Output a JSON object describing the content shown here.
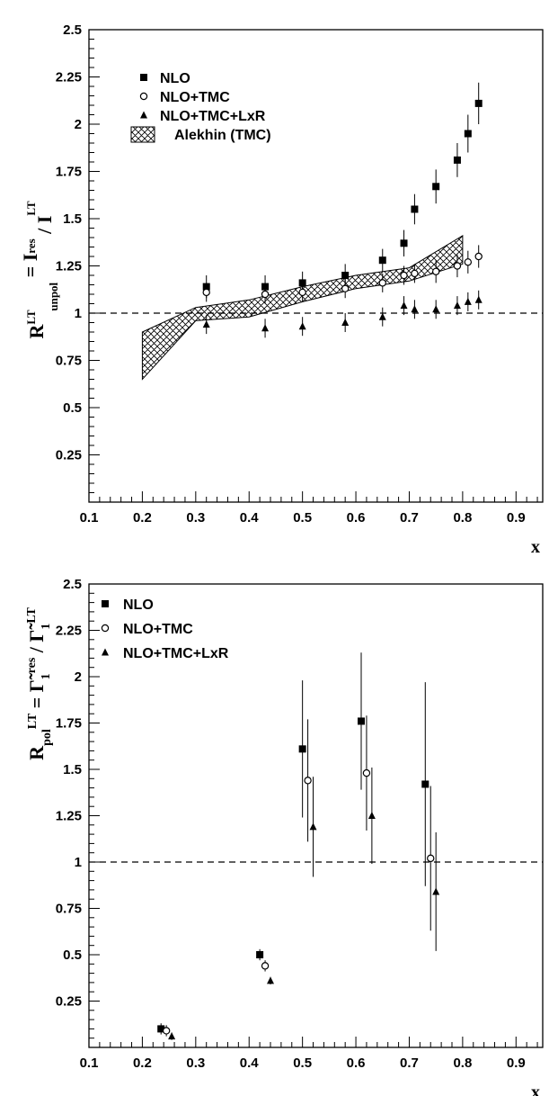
{
  "chart_data": [
    {
      "type": "scatter",
      "ylabel": "R^LT_unpol = I^res / I^LT",
      "xlabel": "x",
      "xlim": [
        0.1,
        0.95
      ],
      "ylim": [
        0,
        2.5
      ],
      "x_ticks": [
        "0.1",
        "0.2",
        "0.3",
        "0.4",
        "0.5",
        "0.6",
        "0.7",
        "0.8",
        "0.9"
      ],
      "y_ticks": [
        "0.25",
        "0.5",
        "0.75",
        "1",
        "1.25",
        "1.5",
        "1.75",
        "2",
        "2.25",
        "2.5"
      ],
      "reference_line": 1,
      "legend_position": "top-left",
      "series": [
        {
          "name": "NLO",
          "marker": "square-filled",
          "points": [
            {
              "x": 0.32,
              "y": 1.14,
              "err": 0.06
            },
            {
              "x": 0.43,
              "y": 1.14,
              "err": 0.06
            },
            {
              "x": 0.5,
              "y": 1.16,
              "err": 0.06
            },
            {
              "x": 0.58,
              "y": 1.2,
              "err": 0.06
            },
            {
              "x": 0.65,
              "y": 1.28,
              "err": 0.06
            },
            {
              "x": 0.69,
              "y": 1.37,
              "err": 0.07
            },
            {
              "x": 0.71,
              "y": 1.55,
              "err": 0.08
            },
            {
              "x": 0.75,
              "y": 1.67,
              "err": 0.09
            },
            {
              "x": 0.79,
              "y": 1.81,
              "err": 0.09
            },
            {
              "x": 0.81,
              "y": 1.95,
              "err": 0.1
            },
            {
              "x": 0.83,
              "y": 2.11,
              "err": 0.11
            }
          ]
        },
        {
          "name": "NLO+TMC",
          "marker": "circle-open",
          "points": [
            {
              "x": 0.32,
              "y": 1.11,
              "err": 0.05
            },
            {
              "x": 0.43,
              "y": 1.1,
              "err": 0.05
            },
            {
              "x": 0.5,
              "y": 1.11,
              "err": 0.05
            },
            {
              "x": 0.58,
              "y": 1.13,
              "err": 0.05
            },
            {
              "x": 0.65,
              "y": 1.16,
              "err": 0.05
            },
            {
              "x": 0.69,
              "y": 1.2,
              "err": 0.05
            },
            {
              "x": 0.71,
              "y": 1.21,
              "err": 0.05
            },
            {
              "x": 0.75,
              "y": 1.22,
              "err": 0.06
            },
            {
              "x": 0.79,
              "y": 1.25,
              "err": 0.06
            },
            {
              "x": 0.81,
              "y": 1.27,
              "err": 0.06
            },
            {
              "x": 0.83,
              "y": 1.3,
              "err": 0.06
            }
          ]
        },
        {
          "name": "NLO+TMC+LxR",
          "marker": "triangle-filled",
          "points": [
            {
              "x": 0.32,
              "y": 0.94,
              "err": 0.05
            },
            {
              "x": 0.43,
              "y": 0.92,
              "err": 0.05
            },
            {
              "x": 0.5,
              "y": 0.93,
              "err": 0.05
            },
            {
              "x": 0.58,
              "y": 0.95,
              "err": 0.05
            },
            {
              "x": 0.65,
              "y": 0.98,
              "err": 0.05
            },
            {
              "x": 0.69,
              "y": 1.04,
              "err": 0.05
            },
            {
              "x": 0.71,
              "y": 1.02,
              "err": 0.05
            },
            {
              "x": 0.75,
              "y": 1.02,
              "err": 0.05
            },
            {
              "x": 0.79,
              "y": 1.04,
              "err": 0.05
            },
            {
              "x": 0.81,
              "y": 1.06,
              "err": 0.05
            },
            {
              "x": 0.83,
              "y": 1.07,
              "err": 0.05
            }
          ]
        }
      ],
      "band": {
        "name": "Alekhin (TMC)",
        "x": [
          0.2,
          0.3,
          0.4,
          0.5,
          0.6,
          0.7,
          0.8
        ],
        "upper": [
          0.9,
          1.03,
          1.07,
          1.14,
          1.2,
          1.24,
          1.41
        ],
        "lower": [
          0.65,
          0.96,
          0.98,
          1.06,
          1.13,
          1.17,
          1.26
        ]
      }
    },
    {
      "type": "scatter",
      "ylabel": "R_pol^LT = Γ̃_1^res / Γ̃_1^LT",
      "xlabel": "x",
      "xlim": [
        0.1,
        0.95
      ],
      "ylim": [
        0,
        2.5
      ],
      "x_ticks": [
        "0.1",
        "0.2",
        "0.3",
        "0.4",
        "0.5",
        "0.6",
        "0.7",
        "0.8",
        "0.9"
      ],
      "y_ticks": [
        "0.25",
        "0.5",
        "0.75",
        "1",
        "1.25",
        "1.5",
        "1.75",
        "2",
        "2.25",
        "2.5"
      ],
      "reference_line": 1,
      "legend_position": "top-left",
      "series": [
        {
          "name": "NLO",
          "marker": "square-filled",
          "points": [
            {
              "x": 0.235,
              "y": 0.1,
              "err": 0.03
            },
            {
              "x": 0.42,
              "y": 0.5,
              "err": 0.03
            },
            {
              "x": 0.5,
              "y": 1.61,
              "err": 0.37
            },
            {
              "x": 0.61,
              "y": 1.76,
              "err": 0.37
            },
            {
              "x": 0.73,
              "y": 1.42,
              "err": 0.55
            }
          ]
        },
        {
          "name": "NLO+TMC",
          "marker": "circle-open",
          "points": [
            {
              "x": 0.245,
              "y": 0.09,
              "err": 0.03
            },
            {
              "x": 0.43,
              "y": 0.44,
              "err": 0.03
            },
            {
              "x": 0.51,
              "y": 1.44,
              "err": 0.33
            },
            {
              "x": 0.62,
              "y": 1.48,
              "err": 0.31
            },
            {
              "x": 0.74,
              "y": 1.02,
              "err": 0.39
            }
          ]
        },
        {
          "name": "NLO+TMC+LxR",
          "marker": "triangle-filled",
          "points": [
            {
              "x": 0.255,
              "y": 0.06,
              "err": 0.02
            },
            {
              "x": 0.44,
              "y": 0.36,
              "err": 0.02
            },
            {
              "x": 0.52,
              "y": 1.19,
              "err": 0.27
            },
            {
              "x": 0.63,
              "y": 1.25,
              "err": 0.26
            },
            {
              "x": 0.75,
              "y": 0.84,
              "err": 0.32
            }
          ]
        }
      ]
    }
  ]
}
